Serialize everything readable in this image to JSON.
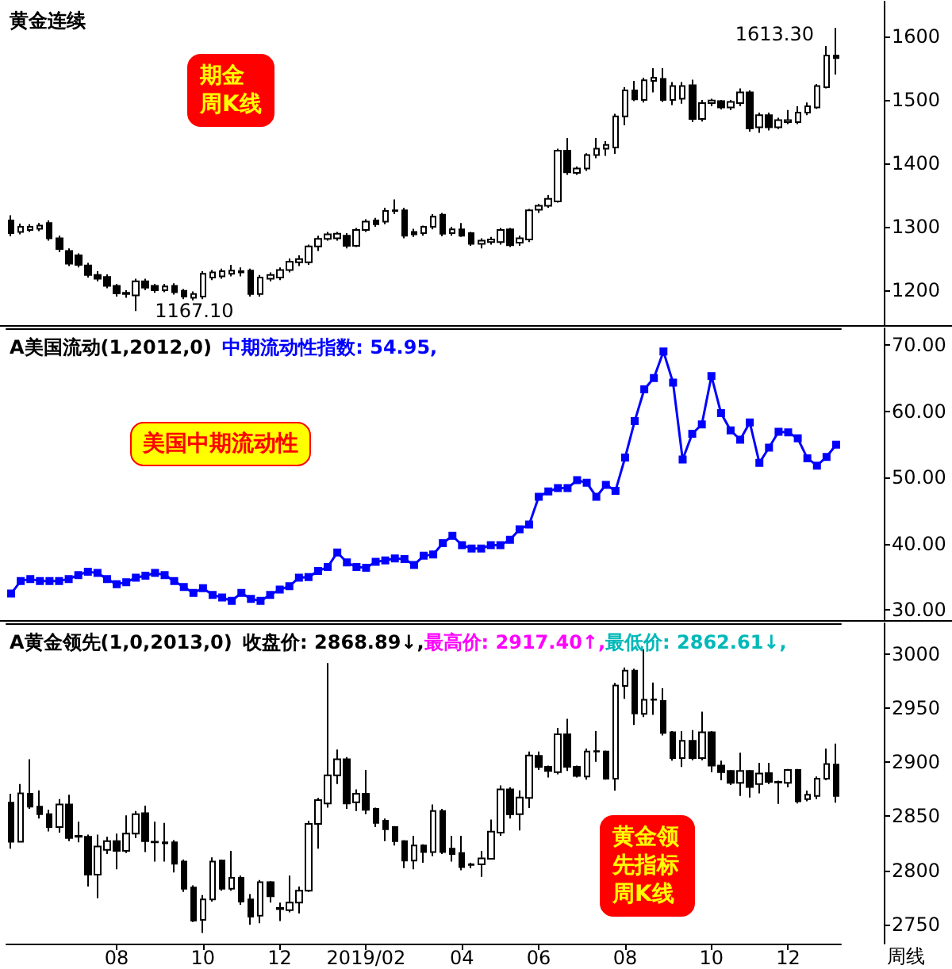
{
  "chart_data": [
    {
      "type": "candlestick",
      "title": "黄金连续",
      "tick_labels": "y",
      "categories": [
        null,
        null,
        null,
        null,
        null,
        null,
        null,
        null,
        null,
        null,
        null,
        "08",
        null,
        null,
        null,
        null,
        null,
        null,
        null,
        null,
        "10",
        null,
        null,
        null,
        null,
        null,
        null,
        null,
        "12",
        null,
        null,
        null,
        null,
        null,
        null,
        null,
        null,
        "2019/02",
        null,
        null,
        null,
        null,
        null,
        null,
        null,
        null,
        null,
        "04",
        null,
        null,
        null,
        null,
        null,
        null,
        null,
        "06",
        null,
        null,
        null,
        null,
        null,
        null,
        null,
        null,
        "08",
        null,
        null,
        null,
        null,
        null,
        null,
        null,
        null,
        "10",
        null,
        null,
        null,
        null,
        null,
        null,
        null,
        "12",
        null,
        null,
        null,
        null,
        null
      ],
      "ohlc": [
        [
          1310,
          1318,
          1285,
          1290
        ],
        [
          1292,
          1305,
          1288,
          1300
        ],
        [
          1295,
          1304,
          1292,
          1300
        ],
        [
          1297,
          1306,
          1293,
          1302
        ],
        [
          1306,
          1310,
          1278,
          1282
        ],
        [
          1282,
          1286,
          1260,
          1265
        ],
        [
          1262,
          1266,
          1238,
          1242
        ],
        [
          1255,
          1258,
          1236,
          1240
        ],
        [
          1239,
          1243,
          1220,
          1224
        ],
        [
          1224,
          1230,
          1214,
          1218
        ],
        [
          1221,
          1225,
          1203,
          1207
        ],
        [
          1207,
          1210,
          1190,
          1195
        ],
        [
          1196,
          1200,
          1188,
          1194
        ],
        [
          1192,
          1218,
          1167.1,
          1214
        ],
        [
          1214,
          1218,
          1200,
          1204
        ],
        [
          1207,
          1210,
          1196,
          1200
        ],
        [
          1200,
          1210,
          1197,
          1206
        ],
        [
          1207,
          1211,
          1193,
          1197
        ],
        [
          1199,
          1202,
          1186,
          1190
        ],
        [
          1188,
          1198,
          1184,
          1194
        ],
        [
          1190,
          1230,
          1186,
          1226
        ],
        [
          1220,
          1232,
          1216,
          1228
        ],
        [
          1222,
          1234,
          1218,
          1230
        ],
        [
          1226,
          1240,
          1222,
          1231
        ],
        [
          1228,
          1236,
          1222,
          1230
        ],
        [
          1231,
          1234,
          1190,
          1194
        ],
        [
          1194,
          1224,
          1190,
          1220
        ],
        [
          1218,
          1228,
          1214,
          1224
        ],
        [
          1220,
          1236,
          1216,
          1232
        ],
        [
          1232,
          1250,
          1228,
          1245
        ],
        [
          1244,
          1255,
          1238,
          1249
        ],
        [
          1244,
          1272,
          1240,
          1269
        ],
        [
          1269,
          1286,
          1262,
          1281
        ],
        [
          1281,
          1292,
          1278,
          1288
        ],
        [
          1282,
          1292,
          1278,
          1289
        ],
        [
          1286,
          1290,
          1266,
          1270
        ],
        [
          1270,
          1298,
          1268,
          1295
        ],
        [
          1295,
          1312,
          1292,
          1308
        ],
        [
          1310,
          1314,
          1300,
          1304
        ],
        [
          1308,
          1330,
          1304,
          1325
        ],
        [
          1325,
          1343,
          1320,
          1326
        ],
        [
          1326,
          1330,
          1282,
          1286
        ],
        [
          1292,
          1297,
          1284,
          1288
        ],
        [
          1290,
          1302,
          1286,
          1300
        ],
        [
          1300,
          1320,
          1296,
          1316
        ],
        [
          1319,
          1322,
          1285,
          1289
        ],
        [
          1290,
          1300,
          1286,
          1296
        ],
        [
          1296,
          1306,
          1284,
          1286
        ],
        [
          1290,
          1292,
          1270,
          1273
        ],
        [
          1273,
          1282,
          1266,
          1278
        ],
        [
          1276,
          1284,
          1272,
          1280
        ],
        [
          1276,
          1298,
          1272,
          1295
        ],
        [
          1296,
          1298,
          1268,
          1271
        ],
        [
          1275,
          1286,
          1270,
          1282
        ],
        [
          1280,
          1328,
          1276,
          1326
        ],
        [
          1327,
          1336,
          1322,
          1333
        ],
        [
          1333,
          1350,
          1330,
          1344
        ],
        [
          1340,
          1423,
          1338,
          1420
        ],
        [
          1420,
          1440,
          1382,
          1386
        ],
        [
          1385,
          1395,
          1382,
          1392
        ],
        [
          1392,
          1416,
          1388,
          1413
        ],
        [
          1413,
          1440,
          1408,
          1423
        ],
        [
          1423,
          1435,
          1412,
          1429
        ],
        [
          1425,
          1478,
          1415,
          1474
        ],
        [
          1474,
          1520,
          1460,
          1515
        ],
        [
          1515,
          1530,
          1498,
          1501
        ],
        [
          1500,
          1535,
          1496,
          1531
        ],
        [
          1530,
          1550,
          1512,
          1535
        ],
        [
          1533,
          1550,
          1497,
          1500
        ],
        [
          1500,
          1528,
          1492,
          1522
        ],
        [
          1502,
          1528,
          1494,
          1522
        ],
        [
          1523,
          1532,
          1465,
          1470
        ],
        [
          1470,
          1500,
          1466,
          1495
        ],
        [
          1495,
          1502,
          1490,
          1499
        ],
        [
          1498,
          1500,
          1485,
          1488
        ],
        [
          1488,
          1500,
          1484,
          1497
        ],
        [
          1495,
          1518,
          1490,
          1512
        ],
        [
          1512,
          1515,
          1450,
          1455
        ],
        [
          1457,
          1480,
          1448,
          1476
        ],
        [
          1476,
          1480,
          1452,
          1457
        ],
        [
          1457,
          1472,
          1454,
          1468
        ],
        [
          1465,
          1484,
          1462,
          1468
        ],
        [
          1465,
          1490,
          1462,
          1480
        ],
        [
          1480,
          1496,
          1476,
          1490
        ],
        [
          1488,
          1525,
          1486,
          1522
        ],
        [
          1520,
          1585,
          1518,
          1570
        ],
        [
          1570,
          1613.3,
          1540,
          1566
        ]
      ],
      "ylim": [
        1145,
        1655
      ],
      "yticks": [
        1200,
        1300,
        1400,
        1500,
        1600
      ],
      "annotations": [
        "期金",
        "周K线",
        "1613.30",
        "1167.10"
      ]
    },
    {
      "type": "line",
      "title": "A美国流动(1,2012,0)",
      "tick_labels": "y",
      "marker": "square",
      "line_style": "solid",
      "categories": [
        null,
        null,
        null,
        null,
        null,
        null,
        null,
        null,
        null,
        null,
        null,
        "08",
        null,
        null,
        null,
        null,
        null,
        null,
        null,
        null,
        "10",
        null,
        null,
        null,
        null,
        null,
        null,
        null,
        "12",
        null,
        null,
        null,
        null,
        null,
        null,
        null,
        null,
        "2019/02",
        null,
        null,
        null,
        null,
        null,
        null,
        null,
        null,
        null,
        "04",
        null,
        null,
        null,
        null,
        null,
        null,
        null,
        "06",
        null,
        null,
        null,
        null,
        null,
        null,
        null,
        null,
        "08",
        null,
        null,
        null,
        null,
        null,
        null,
        null,
        null,
        "10",
        null,
        null,
        null,
        null,
        null,
        null,
        null,
        "12",
        null,
        null,
        null,
        null,
        null
      ],
      "series": [
        {
          "color": "#0000ff",
          "values": [
            32.5,
            34.4,
            34.7,
            34.4,
            34.4,
            34.4,
            34.7,
            35.3,
            35.8,
            35.6,
            34.7,
            33.9,
            34.2,
            34.9,
            35.2,
            35.6,
            35.3,
            34.4,
            33.5,
            32.6,
            33.3,
            32.3,
            31.9,
            31.4,
            32.6,
            31.7,
            31.4,
            32.3,
            33.1,
            33.6,
            34.9,
            35.0,
            35.9,
            36.5,
            38.7,
            37.2,
            36.5,
            36.4,
            37.3,
            37.5,
            37.8,
            37.7,
            36.8,
            38.2,
            38.4,
            40.1,
            41.2,
            39.8,
            39.3,
            39.3,
            39.8,
            39.8,
            40.6,
            42.2,
            42.9,
            47.1,
            47.9,
            48.4,
            48.4,
            49.6,
            49.2,
            47.1,
            48.9,
            48.0,
            53.0,
            58.5,
            63.3,
            65.0,
            69.0,
            64.3,
            52.7,
            56.6,
            58.0,
            65.3,
            59.7,
            57.1,
            55.7,
            58.3,
            52.2,
            54.5,
            56.9,
            56.8,
            55.9,
            52.9,
            51.8,
            53.1,
            54.95
          ]
        }
      ],
      "ylim": [
        28.5,
        72.5
      ],
      "yticks": [
        {
          "value": 30,
          "label": "30.00"
        },
        {
          "value": 40,
          "label": "40.00"
        },
        {
          "value": 50,
          "label": "50.00"
        },
        {
          "value": 60,
          "label": "60.00"
        },
        {
          "value": 70,
          "label": "70.00"
        }
      ],
      "annotations": [
        "中期流动性指数: 54.95,",
        "美国中期流动性"
      ]
    },
    {
      "type": "candlestick",
      "title": "A黄金领先(1,0,2013,0)",
      "categories": [
        null,
        null,
        null,
        null,
        null,
        null,
        null,
        null,
        null,
        null,
        null,
        "08",
        null,
        null,
        null,
        null,
        null,
        null,
        null,
        null,
        "10",
        null,
        null,
        null,
        null,
        null,
        null,
        null,
        "12",
        null,
        null,
        null,
        null,
        null,
        null,
        null,
        null,
        "2019/02",
        null,
        null,
        null,
        null,
        null,
        null,
        null,
        null,
        null,
        "04",
        null,
        null,
        null,
        null,
        null,
        null,
        null,
        "06",
        null,
        null,
        null,
        null,
        null,
        null,
        null,
        null,
        "08",
        null,
        null,
        null,
        null,
        null,
        null,
        null,
        null,
        "10",
        null,
        null,
        null,
        null,
        null,
        null,
        null,
        "12",
        null,
        null,
        null,
        null,
        null
      ],
      "ohlc": [
        [
          2862.6,
          2871,
          2820,
          2826.5
        ],
        [
          2826.5,
          2880,
          2826,
          2871.3
        ],
        [
          2871,
          2903,
          2857,
          2859
        ],
        [
          2859,
          2874,
          2848,
          2852
        ],
        [
          2852,
          2856,
          2836,
          2840
        ],
        [
          2840,
          2866,
          2835,
          2861
        ],
        [
          2861,
          2870,
          2827,
          2830
        ],
        [
          2832,
          2845,
          2826,
          2831
        ],
        [
          2831,
          2833,
          2785,
          2796
        ],
        [
          2796,
          2833,
          2774,
          2822
        ],
        [
          2819,
          2831,
          2815,
          2827
        ],
        [
          2827,
          2834,
          2801,
          2818
        ],
        [
          2818,
          2851,
          2816,
          2834
        ],
        [
          2834,
          2855,
          2830,
          2852
        ],
        [
          2853,
          2860,
          2817,
          2827
        ],
        [
          2826,
          2845,
          2808,
          2826.5
        ],
        [
          2826,
          2844,
          2808,
          2825
        ],
        [
          2826,
          2828,
          2798,
          2806
        ],
        [
          2808,
          2810,
          2780,
          2783
        ],
        [
          2784,
          2786,
          2752,
          2753.4
        ],
        [
          2754,
          2777,
          2742,
          2773
        ],
        [
          2773,
          2812,
          2771,
          2808
        ],
        [
          2809,
          2810,
          2781,
          2783
        ],
        [
          2783,
          2818,
          2781,
          2793
        ],
        [
          2793,
          2795,
          2768,
          2771
        ],
        [
          2773,
          2778,
          2749.5,
          2757
        ],
        [
          2758,
          2791,
          2751,
          2789
        ],
        [
          2789,
          2790,
          2770,
          2776
        ],
        [
          2765,
          2770,
          2753,
          2764
        ],
        [
          2763,
          2795,
          2761,
          2770
        ],
        [
          2770,
          2785,
          2760,
          2781
        ],
        [
          2781,
          2846,
          2780,
          2843
        ],
        [
          2843,
          2867,
          2820,
          2865
        ],
        [
          2862,
          2992,
          2858,
          2888
        ],
        [
          2888,
          2912,
          2880,
          2903
        ],
        [
          2903,
          2905,
          2857,
          2862
        ],
        [
          2863,
          2875,
          2855,
          2871
        ],
        [
          2871,
          2893,
          2852,
          2856
        ],
        [
          2857,
          2858,
          2840,
          2844
        ],
        [
          2846,
          2848,
          2827,
          2838
        ],
        [
          2840,
          2841,
          2823,
          2827
        ],
        [
          2827,
          2828,
          2802,
          2809
        ],
        [
          2809,
          2832,
          2801,
          2823
        ],
        [
          2823,
          2824,
          2807,
          2817
        ],
        [
          2817,
          2861,
          2813,
          2855
        ],
        [
          2855,
          2857,
          2815,
          2817
        ],
        [
          2820,
          2832,
          2808,
          2815
        ],
        [
          2816,
          2832,
          2800,
          2803
        ],
        [
          2805.5,
          2807,
          2802,
          2805
        ],
        [
          2805.5,
          2818,
          2794,
          2811
        ],
        [
          2810.6,
          2847,
          2810,
          2835.8
        ],
        [
          2835,
          2878.7,
          2832,
          2875
        ],
        [
          2875,
          2877,
          2848,
          2851.8
        ],
        [
          2852,
          2874,
          2837,
          2867.4
        ],
        [
          2867,
          2910,
          2857.7,
          2906.4
        ],
        [
          2906,
          2910,
          2893,
          2895.7
        ],
        [
          2896,
          2897,
          2886,
          2892
        ],
        [
          2891,
          2932,
          2889,
          2926
        ],
        [
          2926,
          2940.5,
          2892,
          2896
        ],
        [
          2896,
          2897,
          2886,
          2887.4
        ],
        [
          2887,
          2912.8,
          2884,
          2910
        ],
        [
          2910,
          2929,
          2900.6,
          2910.5
        ],
        [
          2910,
          2911,
          2884,
          2885
        ],
        [
          2885,
          2973.7,
          2873.8,
          2971.2
        ],
        [
          2971,
          2988,
          2959,
          2985
        ],
        [
          2985,
          2987,
          2934.7,
          2945.4
        ],
        [
          2945,
          3005,
          2942,
          2958
        ],
        [
          2958,
          2974,
          2944,
          2958.5
        ],
        [
          2957,
          2968.8,
          2925,
          2927.4
        ],
        [
          2928,
          2929,
          2901.6,
          2904
        ],
        [
          2904,
          2929,
          2895.7,
          2920
        ],
        [
          2920,
          2930,
          2902,
          2904
        ],
        [
          2904,
          2947,
          2902,
          2928
        ],
        [
          2928,
          2929,
          2891,
          2897
        ],
        [
          2897,
          2901.6,
          2883.5,
          2891
        ],
        [
          2892,
          2893,
          2879,
          2881
        ],
        [
          2881,
          2909,
          2869,
          2892
        ],
        [
          2892,
          2893,
          2867.4,
          2877.2
        ],
        [
          2880,
          2899.6,
          2871.3,
          2889.6
        ],
        [
          2890,
          2899.6,
          2880,
          2882
        ],
        [
          2882,
          2883,
          2861.6,
          2881.5
        ],
        [
          2881,
          2894,
          2877,
          2893
        ],
        [
          2893,
          2894,
          2862,
          2864
        ],
        [
          2866,
          2873.8,
          2864,
          2870
        ],
        [
          2869,
          2887,
          2866,
          2885
        ],
        [
          2885,
          2912.8,
          2883.5,
          2898.6
        ],
        [
          2898,
          2917.4,
          2862.61,
          2868.89
        ]
      ],
      "ylim": [
        2732,
        3029
      ],
      "yticks": [
        2750,
        2800,
        2850,
        2900,
        2950,
        3000
      ],
      "annotations": [
        "收盘价: 2868.89↓,",
        "最高价: 2917.40↑,",
        "最低价: 2862.61↓,",
        "黄金领先指标",
        "周K线",
        "周线"
      ]
    }
  ]
}
